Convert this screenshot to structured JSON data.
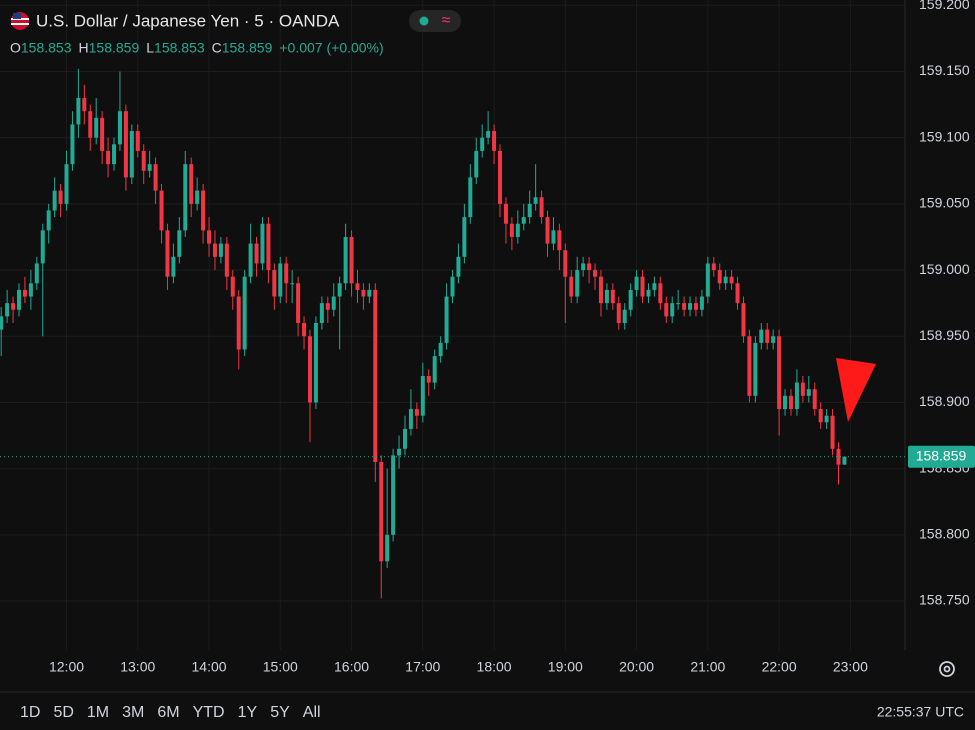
{
  "header": {
    "title": "U.S. Dollar / Japanese Yen · 5 · OANDA",
    "legend": [
      {
        "label": "O",
        "value": "158.853"
      },
      {
        "label": "H",
        "value": "158.859"
      },
      {
        "label": "L",
        "value": "158.853"
      },
      {
        "label": "C",
        "value": "158.859"
      }
    ],
    "change": "+0.007 (+0.00%)"
  },
  "footer": {
    "ranges": [
      "1D",
      "5D",
      "1M",
      "3M",
      "6M",
      "YTD",
      "1Y",
      "5Y",
      "All"
    ],
    "clock": "22:55:37 UTC"
  },
  "chart_data": {
    "type": "candlestick",
    "up_color": "#22ab94",
    "down_color": "#f23645",
    "grid": true,
    "xlim": [
      "11:04",
      "23:46"
    ],
    "xticks": [
      "12:00",
      "13:00",
      "14:00",
      "15:00",
      "16:00",
      "17:00",
      "18:00",
      "19:00",
      "20:00",
      "21:00",
      "22:00",
      "23:00"
    ],
    "ylim": [
      158.713,
      159.204
    ],
    "yticks": [
      {
        "value": 158.75,
        "label": "158.750"
      },
      {
        "value": 158.8,
        "label": "158.800"
      },
      {
        "value": 158.85,
        "label": "158.850"
      },
      {
        "value": 158.9,
        "label": "158.900"
      },
      {
        "value": 158.95,
        "label": "158.950"
      },
      {
        "value": 159,
        "label": "159.000"
      },
      {
        "value": 159.05,
        "label": "159.050"
      },
      {
        "value": 159.1,
        "label": "159.100"
      },
      {
        "value": 159.15,
        "label": "159.150"
      },
      {
        "value": 159.2,
        "label": "159.200"
      }
    ],
    "last_price": 158.859,
    "x": [
      "11:05",
      "11:10",
      "11:15",
      "11:20",
      "11:25",
      "11:30",
      "11:35",
      "11:40",
      "11:45",
      "11:50",
      "11:55",
      "12:00",
      "12:05",
      "12:10",
      "12:15",
      "12:20",
      "12:25",
      "12:30",
      "12:35",
      "12:40",
      "12:45",
      "12:50",
      "12:55",
      "13:00",
      "13:05",
      "13:10",
      "13:15",
      "13:20",
      "13:25",
      "13:30",
      "13:35",
      "13:40",
      "13:45",
      "13:50",
      "13:55",
      "14:00",
      "14:05",
      "14:10",
      "14:15",
      "14:20",
      "14:25",
      "14:30",
      "14:35",
      "14:40",
      "14:45",
      "14:50",
      "14:55",
      "15:00",
      "15:05",
      "15:10",
      "15:15",
      "15:20",
      "15:25",
      "15:30",
      "15:35",
      "15:40",
      "15:45",
      "15:50",
      "15:55",
      "16:00",
      "16:05",
      "16:10",
      "16:15",
      "16:20",
      "16:25",
      "16:30",
      "16:35",
      "16:40",
      "16:45",
      "16:50",
      "16:55",
      "17:00",
      "17:05",
      "17:10",
      "17:15",
      "17:20",
      "17:25",
      "17:30",
      "17:35",
      "17:40",
      "17:45",
      "17:50",
      "17:55",
      "18:00",
      "18:05",
      "18:10",
      "18:15",
      "18:20",
      "18:25",
      "18:30",
      "18:35",
      "18:40",
      "18:45",
      "18:50",
      "18:55",
      "19:00",
      "19:05",
      "19:10",
      "19:15",
      "19:20",
      "19:25",
      "19:30",
      "19:35",
      "19:40",
      "19:45",
      "19:50",
      "19:55",
      "20:00",
      "20:05",
      "20:10",
      "20:15",
      "20:20",
      "20:25",
      "20:30",
      "20:35",
      "20:40",
      "20:45",
      "20:50",
      "20:55",
      "21:00",
      "21:05",
      "21:10",
      "21:15",
      "21:20",
      "21:25",
      "21:30",
      "21:35",
      "21:40",
      "21:45",
      "21:50",
      "21:55",
      "22:00",
      "22:05",
      "22:10",
      "22:15",
      "22:20",
      "22:25",
      "22:30",
      "22:35",
      "22:40",
      "22:45",
      "22:50",
      "22:55"
    ],
    "ohlc": [
      [
        158.955,
        158.972,
        158.935,
        158.965
      ],
      [
        158.965,
        158.985,
        158.96,
        158.975
      ],
      [
        158.975,
        158.98,
        158.96,
        158.97
      ],
      [
        158.97,
        158.99,
        158.965,
        158.985
      ],
      [
        158.985,
        158.995,
        158.975,
        158.98
      ],
      [
        158.98,
        159.0,
        158.97,
        158.99
      ],
      [
        158.99,
        159.01,
        158.985,
        159.005
      ],
      [
        159.005,
        159.035,
        158.95,
        159.03
      ],
      [
        159.03,
        159.05,
        159.02,
        159.045
      ],
      [
        159.045,
        159.07,
        159.04,
        159.06
      ],
      [
        159.06,
        159.065,
        159.04,
        159.05
      ],
      [
        159.05,
        159.09,
        159.045,
        159.08
      ],
      [
        159.08,
        159.12,
        159.075,
        159.11
      ],
      [
        159.11,
        159.152,
        159.1,
        159.13
      ],
      [
        159.13,
        159.14,
        159.11,
        159.12
      ],
      [
        159.12,
        159.125,
        159.09,
        159.1
      ],
      [
        159.1,
        159.13,
        159.095,
        159.115
      ],
      [
        159.115,
        159.12,
        159.08,
        159.09
      ],
      [
        159.09,
        159.1,
        159.07,
        159.08
      ],
      [
        159.08,
        159.1,
        159.075,
        159.095
      ],
      [
        159.095,
        159.15,
        159.09,
        159.12
      ],
      [
        159.12,
        159.125,
        159.06,
        159.07
      ],
      [
        159.07,
        159.11,
        159.065,
        159.105
      ],
      [
        159.105,
        159.11,
        159.085,
        159.09
      ],
      [
        159.09,
        159.095,
        159.065,
        159.075
      ],
      [
        159.075,
        159.09,
        159.07,
        159.08
      ],
      [
        159.08,
        159.085,
        159.05,
        159.06
      ],
      [
        159.06,
        159.065,
        159.02,
        159.03
      ],
      [
        159.03,
        159.035,
        158.985,
        158.995
      ],
      [
        158.995,
        159.02,
        158.99,
        159.01
      ],
      [
        159.01,
        159.04,
        159.005,
        159.03
      ],
      [
        159.03,
        159.09,
        159.025,
        159.08
      ],
      [
        159.08,
        159.085,
        159.04,
        159.05
      ],
      [
        159.05,
        159.07,
        159.045,
        159.06
      ],
      [
        159.06,
        159.065,
        159.02,
        159.03
      ],
      [
        159.03,
        159.04,
        159.01,
        159.02
      ],
      [
        159.02,
        159.03,
        159.0,
        159.01
      ],
      [
        159.01,
        159.025,
        159.005,
        159.02
      ],
      [
        159.02,
        159.025,
        158.985,
        158.995
      ],
      [
        158.995,
        159.0,
        158.97,
        158.98
      ],
      [
        158.98,
        158.985,
        158.925,
        158.94
      ],
      [
        158.94,
        159.0,
        158.935,
        158.995
      ],
      [
        158.995,
        159.035,
        158.99,
        159.02
      ],
      [
        159.02,
        159.025,
        158.995,
        159.005
      ],
      [
        159.005,
        159.04,
        159.0,
        159.035
      ],
      [
        159.035,
        159.04,
        158.99,
        159.0
      ],
      [
        159.0,
        159.005,
        158.97,
        158.98
      ],
      [
        158.98,
        159.01,
        158.975,
        159.005
      ],
      [
        159.005,
        159.01,
        158.975,
        158.99
      ],
      [
        158.99,
        159.0,
        158.975,
        158.99
      ],
      [
        158.99,
        158.995,
        158.95,
        158.96
      ],
      [
        158.96,
        158.965,
        158.94,
        158.95
      ],
      [
        158.95,
        158.955,
        158.87,
        158.9
      ],
      [
        158.9,
        158.965,
        158.895,
        158.96
      ],
      [
        158.96,
        158.98,
        158.955,
        158.975
      ],
      [
        158.975,
        158.98,
        158.96,
        158.97
      ],
      [
        158.97,
        158.99,
        158.965,
        158.98
      ],
      [
        158.98,
        158.995,
        158.94,
        158.99
      ],
      [
        158.99,
        159.035,
        158.985,
        159.025
      ],
      [
        159.025,
        159.03,
        158.98,
        158.99
      ],
      [
        158.99,
        159.0,
        158.975,
        158.985
      ],
      [
        158.985,
        158.99,
        158.97,
        158.98
      ],
      [
        158.98,
        158.99,
        158.975,
        158.985
      ],
      [
        158.985,
        158.99,
        158.84,
        158.855
      ],
      [
        158.855,
        158.86,
        158.752,
        158.78
      ],
      [
        158.78,
        158.85,
        158.775,
        158.8
      ],
      [
        158.8,
        158.865,
        158.795,
        158.86
      ],
      [
        158.86,
        158.875,
        158.85,
        158.865
      ],
      [
        158.865,
        158.89,
        158.86,
        158.88
      ],
      [
        158.88,
        158.91,
        158.875,
        158.895
      ],
      [
        158.895,
        158.9,
        158.88,
        158.89
      ],
      [
        158.89,
        158.93,
        158.885,
        158.92
      ],
      [
        158.92,
        158.925,
        158.905,
        158.915
      ],
      [
        158.915,
        158.94,
        158.91,
        158.935
      ],
      [
        158.935,
        158.95,
        158.93,
        158.945
      ],
      [
        158.945,
        158.99,
        158.94,
        158.98
      ],
      [
        158.98,
        159.0,
        158.975,
        158.995
      ],
      [
        158.995,
        159.02,
        158.99,
        159.01
      ],
      [
        159.01,
        159.05,
        159.005,
        159.04
      ],
      [
        159.04,
        159.08,
        159.035,
        159.07
      ],
      [
        159.07,
        159.1,
        159.065,
        159.09
      ],
      [
        159.09,
        159.11,
        159.085,
        159.1
      ],
      [
        159.1,
        159.12,
        159.095,
        159.105
      ],
      [
        159.105,
        159.11,
        159.08,
        159.09
      ],
      [
        159.09,
        159.095,
        159.04,
        159.05
      ],
      [
        159.05,
        159.055,
        159.02,
        159.035
      ],
      [
        159.035,
        159.04,
        159.015,
        159.025
      ],
      [
        159.025,
        159.045,
        159.02,
        159.035
      ],
      [
        159.035,
        159.05,
        159.03,
        159.04
      ],
      [
        159.04,
        159.06,
        159.035,
        159.05
      ],
      [
        159.05,
        159.08,
        159.045,
        159.055
      ],
      [
        159.055,
        159.06,
        159.035,
        159.04
      ],
      [
        159.04,
        159.045,
        159.01,
        159.02
      ],
      [
        159.02,
        159.04,
        159.015,
        159.03
      ],
      [
        159.03,
        159.035,
        159.0,
        159.015
      ],
      [
        159.015,
        159.02,
        158.96,
        158.995
      ],
      [
        158.995,
        159.0,
        158.975,
        158.98
      ],
      [
        158.98,
        159.01,
        158.975,
        159.0
      ],
      [
        159.0,
        159.01,
        158.995,
        159.005
      ],
      [
        159.005,
        159.01,
        158.99,
        159.0
      ],
      [
        159.0,
        159.005,
        158.985,
        158.995
      ],
      [
        158.995,
        159.0,
        158.965,
        158.975
      ],
      [
        158.975,
        158.99,
        158.97,
        158.985
      ],
      [
        158.985,
        158.99,
        158.97,
        158.975
      ],
      [
        158.975,
        158.98,
        158.955,
        158.96
      ],
      [
        158.96,
        158.975,
        158.955,
        158.97
      ],
      [
        158.97,
        158.99,
        158.965,
        158.985
      ],
      [
        158.985,
        159.0,
        158.98,
        158.995
      ],
      [
        158.995,
        159.0,
        158.975,
        158.98
      ],
      [
        158.98,
        158.99,
        158.975,
        158.985
      ],
      [
        158.985,
        158.995,
        158.98,
        158.99
      ],
      [
        158.99,
        158.995,
        158.97,
        158.975
      ],
      [
        158.975,
        158.98,
        158.96,
        158.965
      ],
      [
        158.965,
        158.98,
        158.96,
        158.975
      ],
      [
        158.975,
        158.985,
        158.97,
        158.975
      ],
      [
        158.975,
        158.98,
        158.965,
        158.97
      ],
      [
        158.97,
        158.98,
        158.965,
        158.975
      ],
      [
        158.975,
        158.98,
        158.965,
        158.97
      ],
      [
        158.97,
        158.985,
        158.965,
        158.98
      ],
      [
        158.98,
        159.01,
        158.975,
        159.005
      ],
      [
        159.005,
        159.01,
        158.995,
        159.0
      ],
      [
        159.0,
        159.005,
        158.985,
        158.99
      ],
      [
        158.99,
        159.0,
        158.985,
        158.995
      ],
      [
        158.995,
        159.0,
        158.985,
        158.99
      ],
      [
        158.99,
        158.995,
        158.97,
        158.975
      ],
      [
        158.975,
        158.98,
        158.945,
        158.95
      ],
      [
        158.95,
        158.955,
        158.9,
        158.905
      ],
      [
        158.905,
        158.95,
        158.9,
        158.945
      ],
      [
        158.945,
        158.96,
        158.94,
        158.955
      ],
      [
        158.955,
        158.96,
        158.94,
        158.945
      ],
      [
        158.945,
        158.955,
        158.94,
        158.95
      ],
      [
        158.95,
        158.955,
        158.875,
        158.895
      ],
      [
        158.895,
        158.91,
        158.89,
        158.905
      ],
      [
        158.905,
        158.91,
        158.89,
        158.895
      ],
      [
        158.895,
        158.925,
        158.89,
        158.915
      ],
      [
        158.915,
        158.92,
        158.9,
        158.905
      ],
      [
        158.905,
        158.92,
        158.9,
        158.91
      ],
      [
        158.91,
        158.915,
        158.89,
        158.895
      ],
      [
        158.895,
        158.9,
        158.88,
        158.885
      ],
      [
        158.885,
        158.895,
        158.88,
        158.89
      ],
      [
        158.89,
        158.895,
        158.86,
        158.865
      ],
      [
        158.865,
        158.87,
        158.838,
        158.853
      ],
      [
        158.853,
        158.859,
        158.853,
        158.859
      ]
    ]
  }
}
